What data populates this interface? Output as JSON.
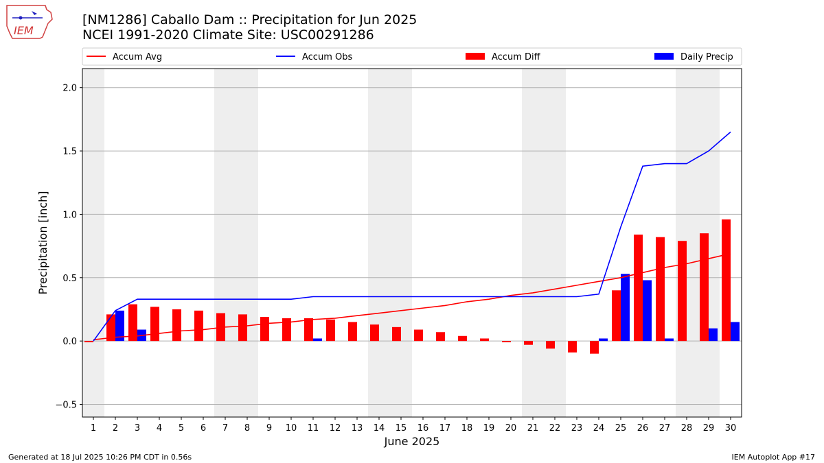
{
  "header": {
    "title_line1": "[NM1286] Caballo Dam :: Precipitation for Jun 2025",
    "title_line2": "NCEI 1991-2020 Climate Site: USC00291286",
    "logo_text": "IEM"
  },
  "footer": {
    "generated": "Generated at 18 Jul 2025 10:26 PM CDT in 0.56s",
    "app": "IEM Autoplot App #17"
  },
  "colors": {
    "accum_avg": "#ff0000",
    "accum_obs": "#0000ff",
    "accum_diff": "#ff0000",
    "daily_precip": "#0000ff",
    "weekend_shade": "#eeeeee",
    "grid": "#b0b0b0"
  },
  "chart_data": {
    "type": "bar",
    "xlabel": "June 2025",
    "ylabel": "Precipitation [inch]",
    "ylim": [
      -0.6,
      2.15
    ],
    "yticks": [
      -0.5,
      0.0,
      0.5,
      1.0,
      1.5,
      2.0
    ],
    "ytick_labels": [
      "−0.5",
      "0.0",
      "0.5",
      "1.0",
      "1.5",
      "2.0"
    ],
    "grid": "horizontal",
    "legend_position": "top",
    "categories": [
      "1",
      "2",
      "3",
      "4",
      "5",
      "6",
      "7",
      "8",
      "9",
      "10",
      "11",
      "12",
      "13",
      "14",
      "15",
      "16",
      "17",
      "18",
      "19",
      "20",
      "21",
      "22",
      "23",
      "24",
      "25",
      "26",
      "27",
      "28",
      "29",
      "30"
    ],
    "weekend_days": [
      1,
      7,
      8,
      14,
      15,
      21,
      22,
      28,
      29
    ],
    "series": [
      {
        "name": "Accum Avg",
        "kind": "line",
        "values": [
          0.01,
          0.03,
          0.04,
          0.06,
          0.08,
          0.09,
          0.11,
          0.12,
          0.14,
          0.15,
          0.17,
          0.18,
          0.2,
          0.22,
          0.24,
          0.26,
          0.28,
          0.31,
          0.33,
          0.36,
          0.38,
          0.41,
          0.44,
          0.47,
          0.5,
          0.54,
          0.58,
          0.61,
          0.65,
          0.69
        ]
      },
      {
        "name": "Accum Obs",
        "kind": "line",
        "values": [
          0.0,
          0.24,
          0.33,
          0.33,
          0.33,
          0.33,
          0.33,
          0.33,
          0.33,
          0.33,
          0.35,
          0.35,
          0.35,
          0.35,
          0.35,
          0.35,
          0.35,
          0.35,
          0.35,
          0.35,
          0.35,
          0.35,
          0.35,
          0.37,
          0.9,
          1.38,
          1.4,
          1.4,
          1.5,
          1.65
        ]
      },
      {
        "name": "Accum Diff",
        "kind": "bar",
        "values": [
          -0.01,
          0.21,
          0.29,
          0.27,
          0.25,
          0.24,
          0.22,
          0.21,
          0.19,
          0.18,
          0.18,
          0.17,
          0.15,
          0.13,
          0.11,
          0.09,
          0.07,
          0.04,
          0.02,
          -0.01,
          -0.03,
          -0.06,
          -0.09,
          -0.1,
          0.4,
          0.84,
          0.82,
          0.79,
          0.85,
          0.96
        ]
      },
      {
        "name": "Daily Precip",
        "kind": "bar",
        "values": [
          0.0,
          0.24,
          0.09,
          0.0,
          0.0,
          0.0,
          0.0,
          0.0,
          0.0,
          0.0,
          0.02,
          0.0,
          0.0,
          0.0,
          0.0,
          0.0,
          0.0,
          0.0,
          0.0,
          0.0,
          0.0,
          0.0,
          0.0,
          0.02,
          0.53,
          0.48,
          0.02,
          0.0,
          0.1,
          0.15
        ]
      }
    ]
  }
}
